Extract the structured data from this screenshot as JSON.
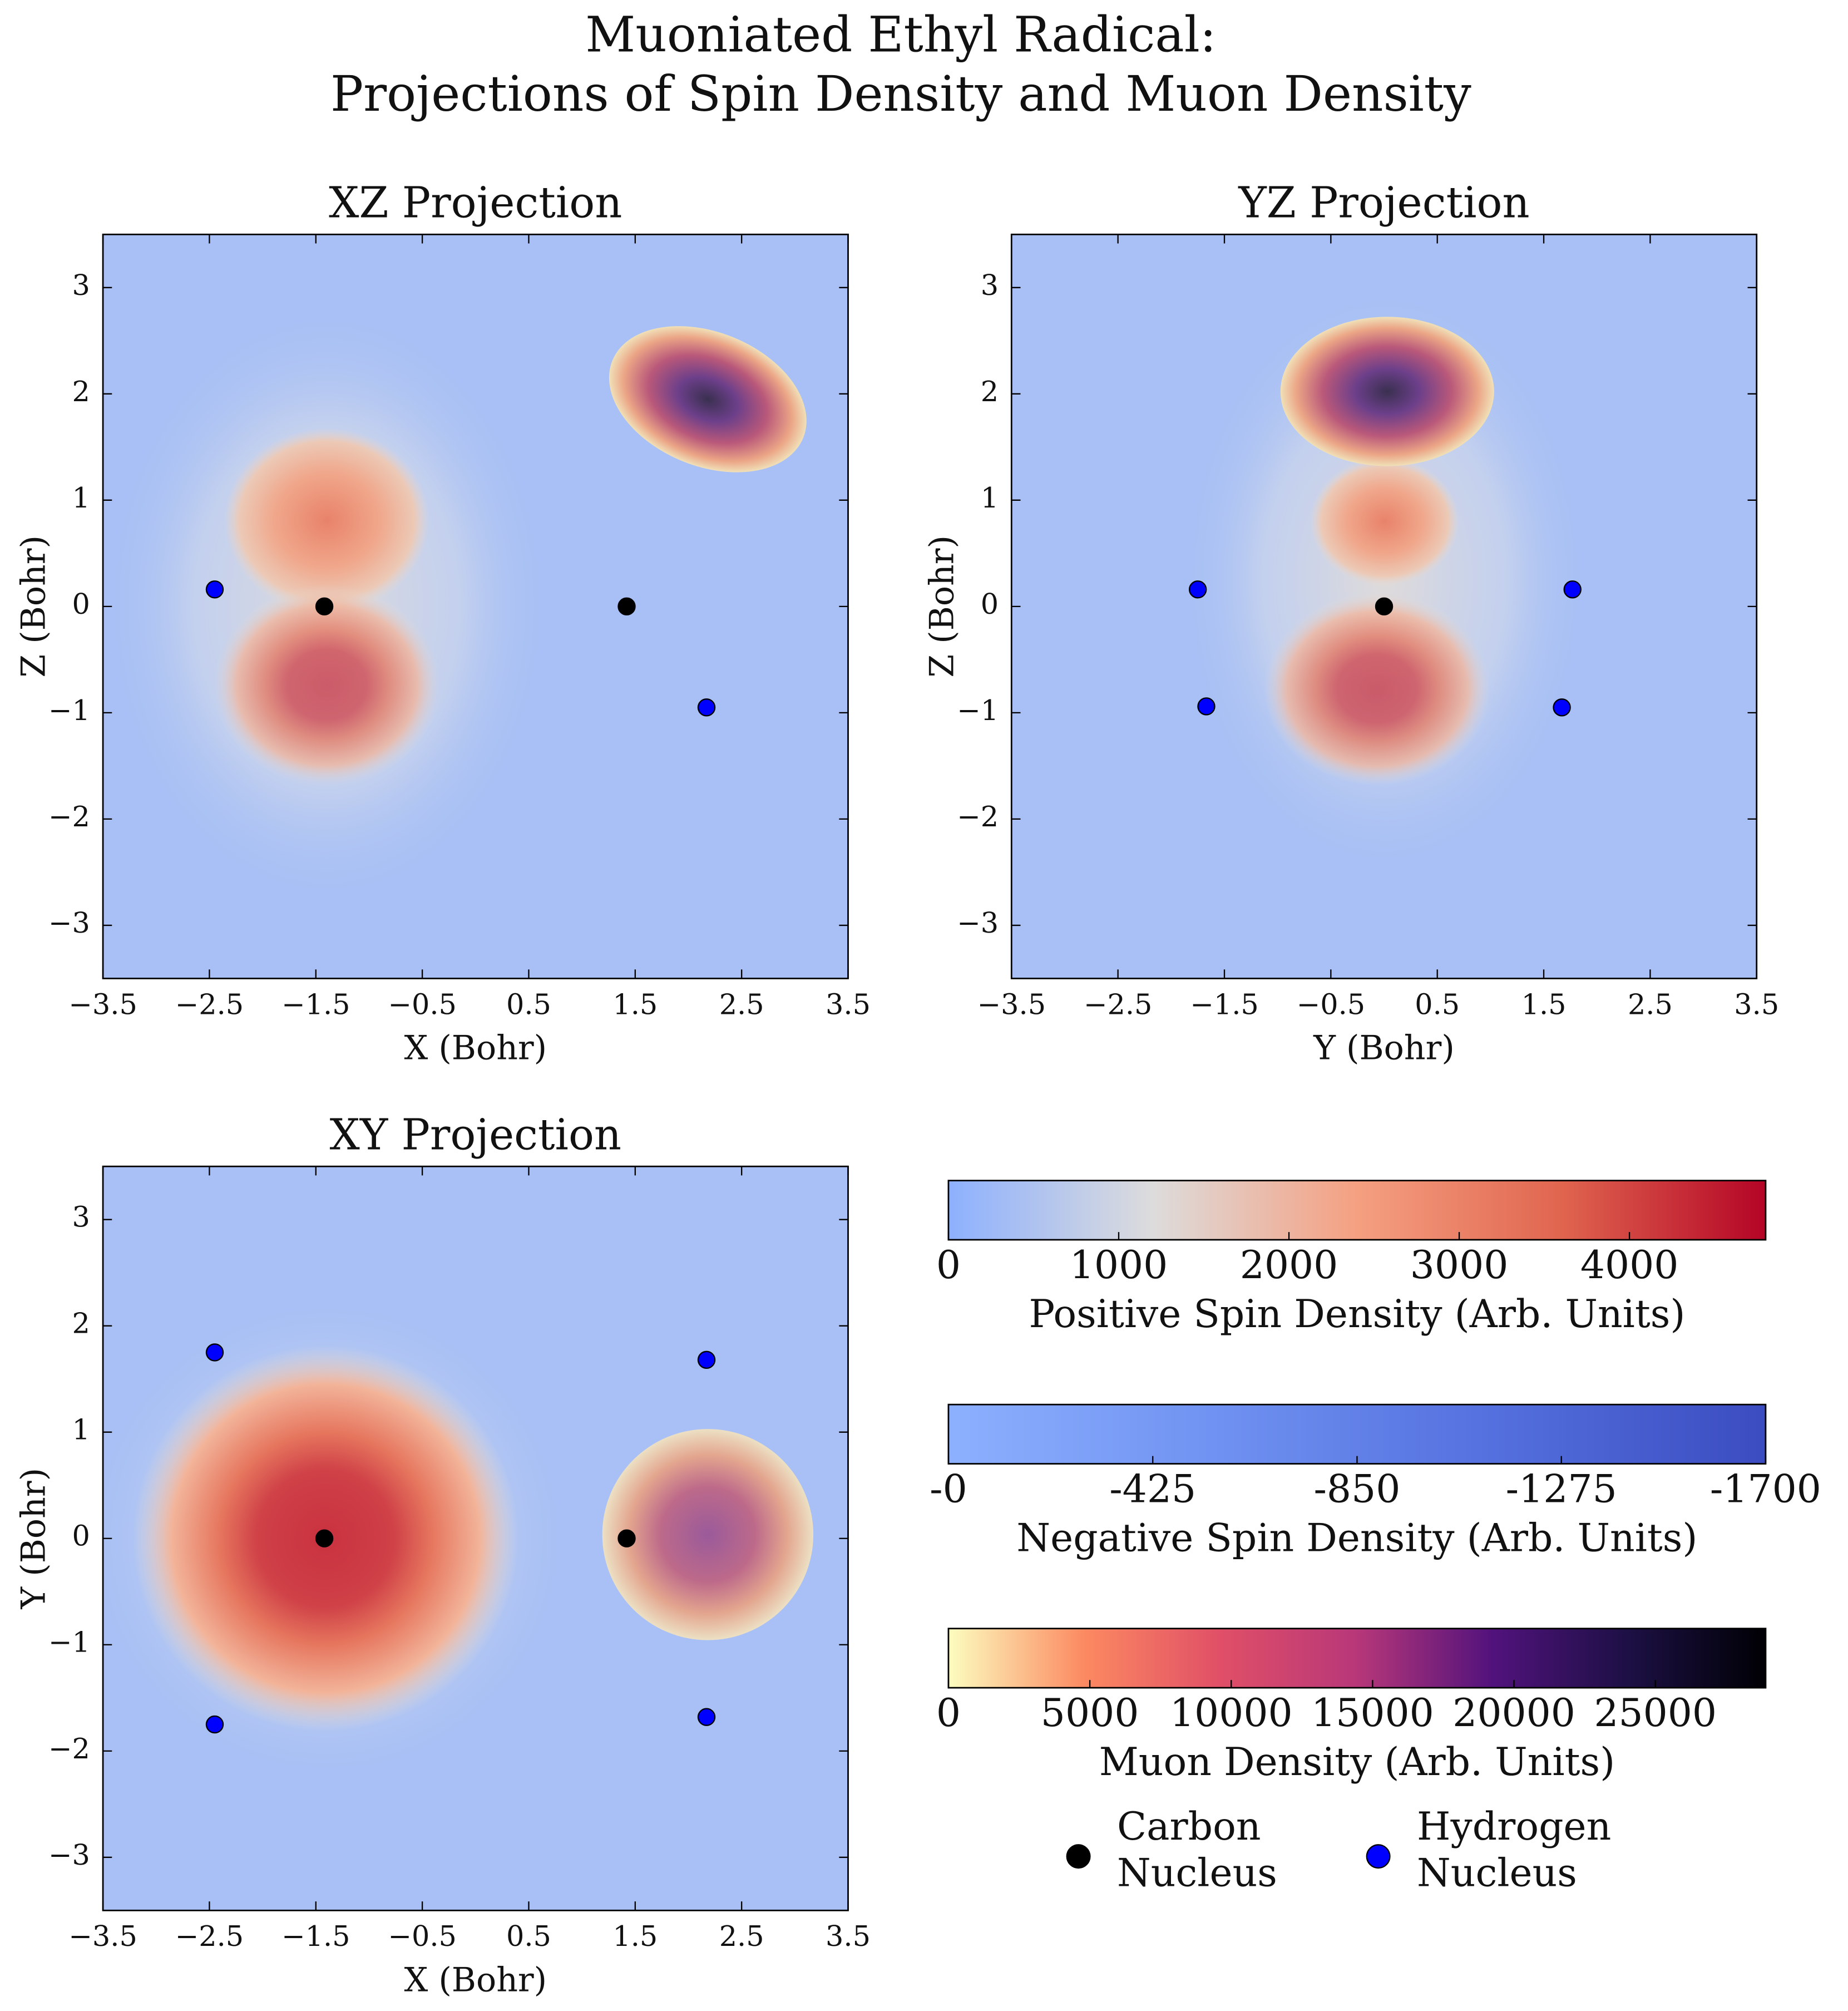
{
  "suptitle": [
    "Muoniated Ethyl Radical:",
    "Projections of Spin Density and Muon Density"
  ],
  "chart_data": [
    {
      "type": "scatter",
      "title": "XZ Projection",
      "x_label": "X (Bohr)",
      "y_label": "Z (Bohr)",
      "xlim": [
        -3.5,
        3.5
      ],
      "ylim": [
        -3.5,
        3.5
      ],
      "xticks": [
        {
          "value": -3.5,
          "label": "−3.5"
        },
        {
          "value": -2.5,
          "label": "−2.5"
        },
        {
          "value": -1.5,
          "label": "−1.5"
        },
        {
          "value": -0.5,
          "label": "−0.5"
        },
        0.5,
        1.5,
        2.5,
        3.5
      ],
      "yticks": [
        {
          "value": -3,
          "label": "−3"
        },
        {
          "value": -2,
          "label": "−2"
        },
        {
          "value": -1,
          "label": "−1"
        },
        0,
        1,
        2,
        3
      ],
      "series": [
        {
          "name": "Carbon Nucleus",
          "color": "#000000",
          "x": [
            -1.42,
            1.42
          ],
          "values": [
            0,
            0
          ]
        },
        {
          "name": "Hydrogen Nucleus",
          "color": "#0000ff",
          "x": [
            -2.45,
            2.17
          ],
          "values": [
            0.16,
            -0.95
          ]
        }
      ]
    },
    {
      "type": "scatter",
      "title": "YZ Projection",
      "x_label": "Y (Bohr)",
      "y_label": "Z (Bohr)",
      "xlim": [
        -3.5,
        3.5
      ],
      "ylim": [
        -3.5,
        3.5
      ],
      "xticks": [
        {
          "value": -3.5,
          "label": "−3.5"
        },
        {
          "value": -2.5,
          "label": "−2.5"
        },
        {
          "value": -1.5,
          "label": "−1.5"
        },
        {
          "value": -0.5,
          "label": "−0.5"
        },
        0.5,
        1.5,
        2.5,
        3.5
      ],
      "yticks": [
        {
          "value": -3,
          "label": "−3"
        },
        {
          "value": -2,
          "label": "−2"
        },
        {
          "value": -1,
          "label": "−1"
        },
        0,
        1,
        2,
        3
      ],
      "series": [
        {
          "name": "Carbon Nucleus",
          "color": "#000000",
          "x": [
            0
          ],
          "values": [
            0
          ]
        },
        {
          "name": "Hydrogen Nucleus",
          "color": "#0000ff",
          "x": [
            -1.75,
            1.77,
            -1.67,
            1.67
          ],
          "values": [
            0.16,
            0.16,
            -0.94,
            -0.95
          ]
        }
      ]
    },
    {
      "type": "scatter",
      "title": "XY Projection",
      "x_label": "X (Bohr)",
      "y_label": "Y (Bohr)",
      "xlim": [
        -3.5,
        3.5
      ],
      "ylim": [
        -3.5,
        3.5
      ],
      "xticks": [
        {
          "value": -3.5,
          "label": "−3.5"
        },
        {
          "value": -2.5,
          "label": "−2.5"
        },
        {
          "value": -1.5,
          "label": "−1.5"
        },
        {
          "value": -0.5,
          "label": "−0.5"
        },
        0.5,
        1.5,
        2.5,
        3.5
      ],
      "yticks": [
        {
          "value": -3,
          "label": "−3"
        },
        {
          "value": -2,
          "label": "−2"
        },
        {
          "value": -1,
          "label": "−1"
        },
        0,
        1,
        2,
        3
      ],
      "series": [
        {
          "name": "Carbon Nucleus",
          "color": "#000000",
          "x": [
            -1.42,
            1.42
          ],
          "values": [
            0,
            0
          ]
        },
        {
          "name": "Hydrogen Nucleus",
          "color": "#0000ff",
          "x": [
            -2.45,
            -2.45,
            2.17,
            2.17
          ],
          "values": [
            1.75,
            -1.75,
            1.68,
            -1.68
          ]
        }
      ]
    },
    {
      "type": "colorbar",
      "label": "Positive Spin Density (Arb. Units)",
      "lim": [
        0,
        4800
      ],
      "ticks": [
        0,
        1000,
        2000,
        3000,
        4000
      ],
      "colors": [
        "#8db0fe",
        "#dddcdc",
        "#f5a081",
        "#e0654f",
        "#b40426"
      ]
    },
    {
      "type": "colorbar",
      "label": "Negative Spin Density (Arb. Units)",
      "lim": [
        0,
        -1700
      ],
      "ticks": [
        {
          "value": 0,
          "label": "-0"
        },
        -425,
        -850,
        -1275,
        -1700
      ],
      "colors": [
        "#8db0fe",
        "#6f91f1",
        "#5470de",
        "#3b4cc0"
      ]
    },
    {
      "type": "colorbar",
      "label": "Muon Density (Arb. Units)",
      "lim": [
        0,
        28900
      ],
      "ticks": [
        0,
        5000,
        10000,
        15000,
        20000,
        25000
      ],
      "colors": [
        "#fcfdbf",
        "#fc8961",
        "#e04f67",
        "#b73779",
        "#51127c",
        "#1c1044",
        "#000004"
      ]
    }
  ]
}
